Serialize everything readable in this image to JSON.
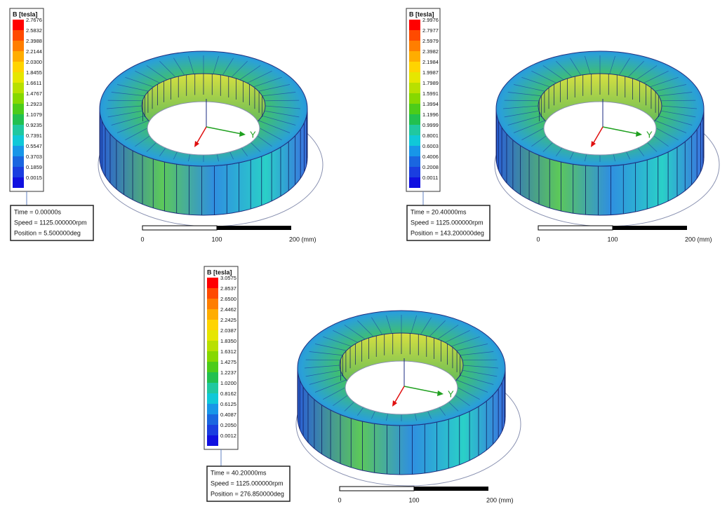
{
  "panels": [
    {
      "legend": {
        "title": "B [tesla]",
        "values": [
          "2.7676",
          "2.5832",
          "2.3988",
          "2.2144",
          "2.0300",
          "1.8455",
          "1.6611",
          "1.4767",
          "1.2923",
          "1.1079",
          "0.9235",
          "0.7391",
          "0.5547",
          "0.3703",
          "0.1859",
          "0.0015"
        ]
      },
      "info": [
        "Time = 0.00000s",
        "Speed = 1125.000000rpm",
        "Position = 5.500000deg"
      ],
      "axis_label": "Y",
      "scale": [
        "0",
        "100",
        "200 (mm)"
      ]
    },
    {
      "legend": {
        "title": "B [tesla]",
        "values": [
          "2.9976",
          "2.7977",
          "2.5979",
          "2.3982",
          "2.1984",
          "1.9987",
          "1.7989",
          "1.5991",
          "1.3994",
          "1.1996",
          "0.9999",
          "0.8001",
          "0.6003",
          "0.4006",
          "0.2008",
          "0.0011"
        ]
      },
      "info": [
        "Time = 20.40000ms",
        "Speed = 1125.000000rpm",
        "Position = 143.200000deg"
      ],
      "axis_label": "Y",
      "scale": [
        "0",
        "100",
        "200 (mm)"
      ]
    },
    {
      "legend": {
        "title": "B [tesla]",
        "values": [
          "3.0575",
          "2.8537",
          "2.6500",
          "2.4462",
          "2.2425",
          "2.0387",
          "1.8350",
          "1.6312",
          "1.4275",
          "1.2237",
          "1.0200",
          "0.8162",
          "0.6125",
          "0.4087",
          "0.2050",
          "0.0012"
        ]
      },
      "info": [
        "Time = 40.20000ms",
        "Speed = 1125.000000rpm",
        "Position = 276.850000deg"
      ],
      "axis_label": "Y",
      "scale": [
        "0",
        "100",
        "200 (mm)"
      ]
    }
  ]
}
